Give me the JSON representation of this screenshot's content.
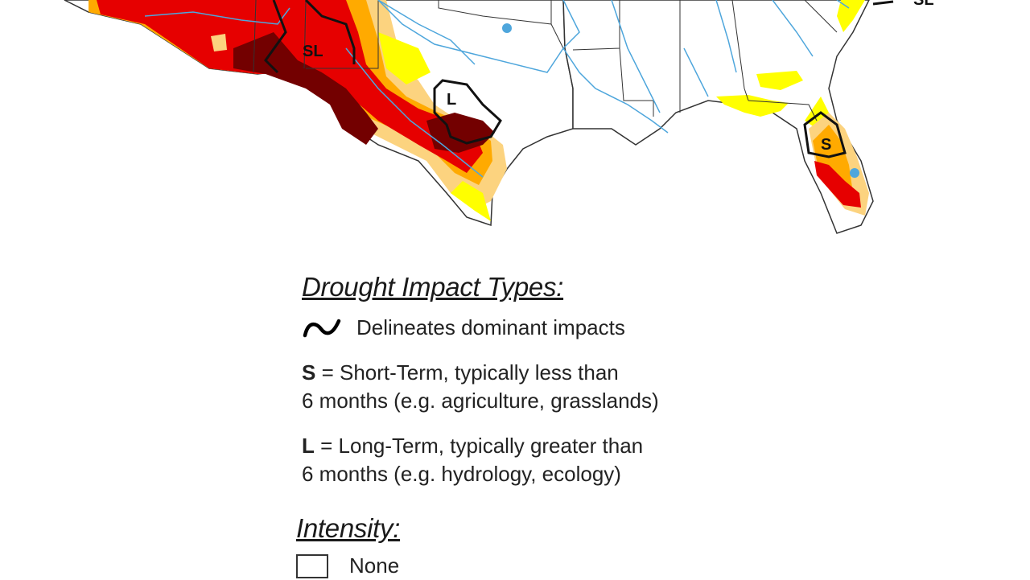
{
  "map": {
    "labels": [
      "SL",
      "L",
      "S",
      "SL"
    ],
    "colors": {
      "none": "#ffffff",
      "d0": "#ffff00",
      "d1": "#fcd37f",
      "d2": "#ffaa00",
      "d3": "#e60000",
      "d4": "#730000",
      "water": "#4ea6dc",
      "border": "#333333"
    }
  },
  "legend": {
    "impact_heading": "Drought Impact Types:",
    "delineate_text": "Delineates dominant impacts",
    "short_term": {
      "code": "S",
      "line1": " = Short-Term, typically less than",
      "line2": "6 months (e.g. agriculture, grasslands)"
    },
    "long_term": {
      "code": "L",
      "line1": " = Long-Term, typically greater than",
      "line2": "6 months (e.g. hydrology, ecology)"
    },
    "intensity_heading": "Intensity:",
    "intensity_items": [
      {
        "label": "None",
        "color": "#ffffff"
      }
    ]
  }
}
